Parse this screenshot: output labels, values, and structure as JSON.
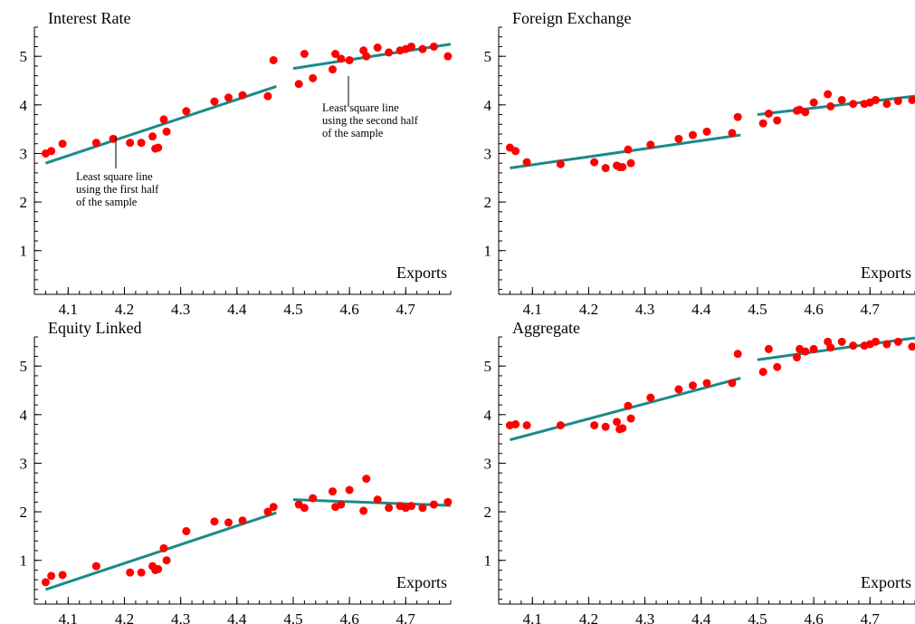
{
  "colors": {
    "points": "#ff0000",
    "fit_line": "#1b8a87",
    "axis": "#000000"
  },
  "chart_data": [
    {
      "type": "scatter",
      "title": "Interest Rate",
      "xlabel": "Exports",
      "xlim": [
        4.04,
        4.78
      ],
      "ylim": [
        0.1,
        5.6
      ],
      "xticks": [
        "4.1",
        "4.2",
        "4.3",
        "4.4",
        "4.5",
        "4.6",
        "4.7"
      ],
      "yticks": [
        "1",
        "2",
        "3",
        "4",
        "5"
      ],
      "points": [
        [
          4.06,
          3.0
        ],
        [
          4.07,
          3.05
        ],
        [
          4.09,
          3.2
        ],
        [
          4.15,
          3.22
        ],
        [
          4.18,
          3.3
        ],
        [
          4.21,
          3.22
        ],
        [
          4.23,
          3.22
        ],
        [
          4.25,
          3.35
        ],
        [
          4.255,
          3.1
        ],
        [
          4.26,
          3.12
        ],
        [
          4.27,
          3.7
        ],
        [
          4.275,
          3.45
        ],
        [
          4.31,
          3.87
        ],
        [
          4.36,
          4.07
        ],
        [
          4.385,
          4.15
        ],
        [
          4.41,
          4.2
        ],
        [
          4.455,
          4.18
        ],
        [
          4.465,
          4.92
        ],
        [
          4.51,
          4.43
        ],
        [
          4.52,
          5.05
        ],
        [
          4.535,
          4.55
        ],
        [
          4.57,
          4.73
        ],
        [
          4.575,
          5.05
        ],
        [
          4.585,
          4.95
        ],
        [
          4.6,
          4.92
        ],
        [
          4.625,
          5.12
        ],
        [
          4.63,
          5.0
        ],
        [
          4.65,
          5.18
        ],
        [
          4.67,
          5.08
        ],
        [
          4.69,
          5.12
        ],
        [
          4.7,
          5.15
        ],
        [
          4.71,
          5.2
        ],
        [
          4.73,
          5.15
        ],
        [
          4.75,
          5.2
        ],
        [
          4.775,
          5.0
        ]
      ],
      "fit_lines": [
        {
          "x": [
            4.06,
            4.47
          ],
          "y": [
            2.8,
            4.38
          ]
        },
        {
          "x": [
            4.5,
            4.78
          ],
          "y": [
            4.75,
            5.25
          ]
        }
      ],
      "annotations": [
        {
          "lines": [
            "Least square line",
            "using the first half",
            "of the sample"
          ]
        },
        {
          "lines": [
            "Least square line",
            "using the second half",
            "of the sample"
          ]
        }
      ]
    },
    {
      "type": "scatter",
      "title": "Foreign Exchange",
      "xlabel": "Exports",
      "xlim": [
        4.04,
        4.78
      ],
      "ylim": [
        0.1,
        5.6
      ],
      "xticks": [
        "4.1",
        "4.2",
        "4.3",
        "4.4",
        "4.5",
        "4.6",
        "4.7"
      ],
      "yticks": [
        "1",
        "2",
        "3",
        "4",
        "5"
      ],
      "points": [
        [
          4.06,
          3.12
        ],
        [
          4.07,
          3.05
        ],
        [
          4.09,
          2.82
        ],
        [
          4.15,
          2.78
        ],
        [
          4.21,
          2.82
        ],
        [
          4.23,
          2.7
        ],
        [
          4.25,
          2.75
        ],
        [
          4.255,
          2.72
        ],
        [
          4.26,
          2.72
        ],
        [
          4.27,
          3.08
        ],
        [
          4.275,
          2.8
        ],
        [
          4.31,
          3.18
        ],
        [
          4.36,
          3.3
        ],
        [
          4.385,
          3.38
        ],
        [
          4.41,
          3.45
        ],
        [
          4.455,
          3.42
        ],
        [
          4.465,
          3.75
        ],
        [
          4.51,
          3.62
        ],
        [
          4.52,
          3.82
        ],
        [
          4.535,
          3.68
        ],
        [
          4.57,
          3.88
        ],
        [
          4.575,
          3.9
        ],
        [
          4.585,
          3.85
        ],
        [
          4.6,
          4.05
        ],
        [
          4.625,
          4.22
        ],
        [
          4.63,
          3.97
        ],
        [
          4.65,
          4.1
        ],
        [
          4.67,
          4.02
        ],
        [
          4.69,
          4.02
        ],
        [
          4.7,
          4.05
        ],
        [
          4.71,
          4.1
        ],
        [
          4.73,
          4.02
        ],
        [
          4.75,
          4.08
        ],
        [
          4.775,
          4.1
        ]
      ],
      "fit_lines": [
        {
          "x": [
            4.06,
            4.47
          ],
          "y": [
            2.7,
            3.38
          ]
        },
        {
          "x": [
            4.5,
            4.78
          ],
          "y": [
            3.8,
            4.18
          ]
        }
      ]
    },
    {
      "type": "scatter",
      "title": "Equity Linked",
      "xlabel": "Exports",
      "xlim": [
        4.04,
        4.78
      ],
      "ylim": [
        0.1,
        5.6
      ],
      "xticks": [
        "4.1",
        "4.2",
        "4.3",
        "4.4",
        "4.5",
        "4.6",
        "4.7"
      ],
      "yticks": [
        "1",
        "2",
        "3",
        "4",
        "5"
      ],
      "points": [
        [
          4.06,
          0.55
        ],
        [
          4.07,
          0.68
        ],
        [
          4.09,
          0.7
        ],
        [
          4.15,
          0.88
        ],
        [
          4.21,
          0.75
        ],
        [
          4.23,
          0.75
        ],
        [
          4.25,
          0.88
        ],
        [
          4.255,
          0.8
        ],
        [
          4.26,
          0.82
        ],
        [
          4.27,
          1.25
        ],
        [
          4.275,
          1.0
        ],
        [
          4.31,
          1.6
        ],
        [
          4.36,
          1.8
        ],
        [
          4.385,
          1.78
        ],
        [
          4.41,
          1.82
        ],
        [
          4.455,
          2.0
        ],
        [
          4.465,
          2.1
        ],
        [
          4.51,
          2.15
        ],
        [
          4.52,
          2.08
        ],
        [
          4.535,
          2.28
        ],
        [
          4.57,
          2.42
        ],
        [
          4.575,
          2.1
        ],
        [
          4.585,
          2.15
        ],
        [
          4.6,
          2.45
        ],
        [
          4.625,
          2.02
        ],
        [
          4.63,
          2.68
        ],
        [
          4.65,
          2.25
        ],
        [
          4.67,
          2.08
        ],
        [
          4.69,
          2.12
        ],
        [
          4.7,
          2.08
        ],
        [
          4.71,
          2.12
        ],
        [
          4.73,
          2.08
        ],
        [
          4.75,
          2.15
        ],
        [
          4.775,
          2.2
        ]
      ],
      "fit_lines": [
        {
          "x": [
            4.06,
            4.47
          ],
          "y": [
            0.4,
            1.98
          ]
        },
        {
          "x": [
            4.5,
            4.78
          ],
          "y": [
            2.25,
            2.13
          ]
        }
      ]
    },
    {
      "type": "scatter",
      "title": "Aggregate",
      "xlabel": "Exports",
      "xlim": [
        4.04,
        4.78
      ],
      "ylim": [
        0.1,
        5.6
      ],
      "xticks": [
        "4.1",
        "4.2",
        "4.3",
        "4.4",
        "4.5",
        "4.6",
        "4.7"
      ],
      "yticks": [
        "1",
        "2",
        "3",
        "4",
        "5"
      ],
      "points": [
        [
          4.06,
          3.78
        ],
        [
          4.07,
          3.8
        ],
        [
          4.09,
          3.78
        ],
        [
          4.15,
          3.78
        ],
        [
          4.21,
          3.78
        ],
        [
          4.23,
          3.75
        ],
        [
          4.25,
          3.85
        ],
        [
          4.255,
          3.7
        ],
        [
          4.26,
          3.72
        ],
        [
          4.27,
          4.18
        ],
        [
          4.275,
          3.92
        ],
        [
          4.31,
          4.35
        ],
        [
          4.36,
          4.52
        ],
        [
          4.385,
          4.6
        ],
        [
          4.41,
          4.65
        ],
        [
          4.455,
          4.65
        ],
        [
          4.465,
          5.25
        ],
        [
          4.51,
          4.88
        ],
        [
          4.52,
          5.35
        ],
        [
          4.535,
          4.98
        ],
        [
          4.57,
          5.18
        ],
        [
          4.575,
          5.35
        ],
        [
          4.585,
          5.3
        ],
        [
          4.6,
          5.35
        ],
        [
          4.625,
          5.5
        ],
        [
          4.63,
          5.38
        ],
        [
          4.65,
          5.5
        ],
        [
          4.67,
          5.42
        ],
        [
          4.69,
          5.42
        ],
        [
          4.7,
          5.45
        ],
        [
          4.71,
          5.5
        ],
        [
          4.73,
          5.45
        ],
        [
          4.75,
          5.5
        ],
        [
          4.775,
          5.4
        ]
      ],
      "fit_lines": [
        {
          "x": [
            4.06,
            4.47
          ],
          "y": [
            3.48,
            4.75
          ]
        },
        {
          "x": [
            4.5,
            4.78
          ],
          "y": [
            5.13,
            5.58
          ]
        }
      ]
    }
  ]
}
